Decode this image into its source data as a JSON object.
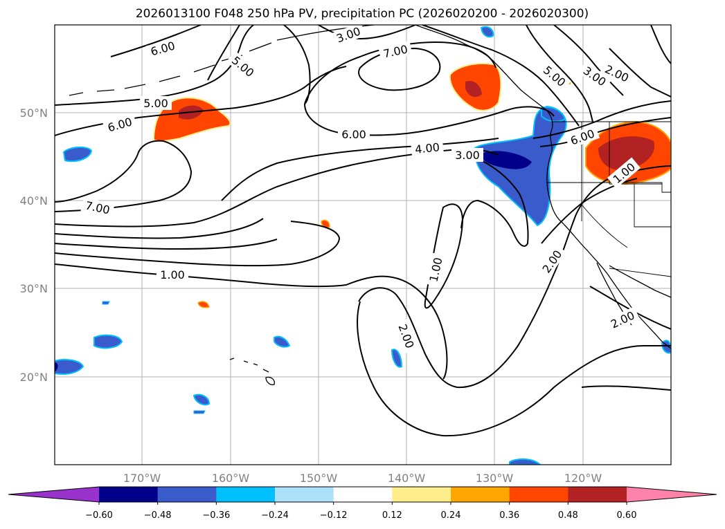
{
  "title": "2026013100 F048 250 hPa PV, precipitation PC (2026020200 - 2026020300)",
  "map": {
    "longitude_ticks": [
      "170°W",
      "160°W",
      "150°W",
      "140°W",
      "130°W",
      "120°W"
    ],
    "latitude_ticks": [
      "50°N",
      "40°N",
      "30°N",
      "20°N"
    ],
    "gridlines": true,
    "pv_contour_labels": [
      "6.00",
      "5.00",
      "3.00",
      "7.00",
      "5.00",
      "3.00",
      "2.00",
      "5.00",
      "6.00",
      "7.00",
      "6.00",
      "4.00",
      "3.00",
      "6.00",
      "1.00",
      "1.00",
      "1.00",
      "2.00",
      "2.00",
      "2.00"
    ]
  },
  "colorbar": {
    "tick_labels": [
      "−0.60",
      "−0.48",
      "−0.36",
      "−0.24",
      "−0.12",
      "0.12",
      "0.24",
      "0.36",
      "0.48",
      "0.60"
    ],
    "colors": [
      "#9932CC",
      "#00008B",
      "#3A5BCB",
      "#00BFFF",
      "#ADE1FA",
      "#FFFFFF",
      "#FFEC8B",
      "#FFA500",
      "#FF4500",
      "#B22222",
      "#FF82AB"
    ],
    "extend": "both"
  },
  "colors": {
    "negative_dark": "#00008B",
    "negative_mid": "#3A5BCB",
    "negative_light": "#00BFFF",
    "positive_mid": "#FF4500",
    "positive_dark": "#B22222",
    "contour": "#000000"
  }
}
